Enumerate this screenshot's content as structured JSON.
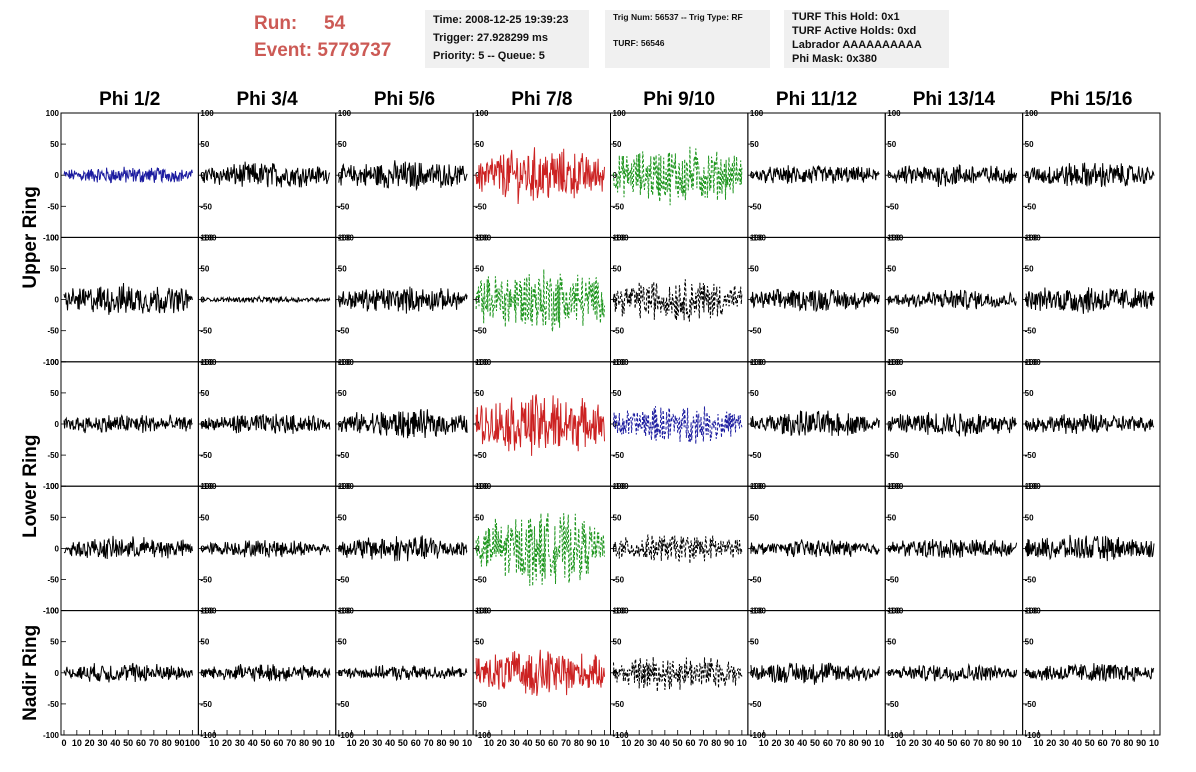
{
  "header": {
    "run_label": "Run:",
    "run_value": "54",
    "event_label": "Event:",
    "event_value": "5779737",
    "time": "Time: 2008-12-25 19:39:23",
    "trigger": "Trigger: 27.928299 ms",
    "priority": "Priority: 5 -- Queue: 5",
    "trig_num": "Trig Num: 56537 -- Trig Type: RF",
    "turf": "TURF: 56546",
    "turf_hold": "TURF This Hold: 0x1",
    "turf_active": "TURF Active Holds: 0xd",
    "labrador": "Labrador AAAAAAAAAA",
    "phi_mask": "Phi Mask: 0x380"
  },
  "chart_data": {
    "type": "line",
    "columns": [
      "Phi 1/2",
      "Phi 3/4",
      "Phi 5/6",
      "Phi 7/8",
      "Phi 9/10",
      "Phi 11/12",
      "Phi 13/14",
      "Phi 15/16"
    ],
    "ring_labels": [
      "Upper Ring",
      "Lower Ring",
      "Nadir Ring"
    ],
    "rows_per_ring": [
      2,
      2,
      1
    ],
    "xlim": [
      0,
      100
    ],
    "ylim": [
      -100,
      100
    ],
    "x_ticks": [
      0,
      10,
      20,
      30,
      40,
      50,
      60,
      70,
      80,
      90,
      100
    ],
    "x_tick_labels_first": [
      "0",
      "10",
      "20",
      "30",
      "40",
      "50",
      "60",
      "70",
      "80",
      "90",
      "100"
    ],
    "x_tick_labels_other": [
      "",
      "10",
      "20",
      "30",
      "40",
      "50",
      "60",
      "70",
      "80",
      "90",
      "10"
    ],
    "y_ticks": [
      -100,
      -50,
      0,
      50,
      100
    ],
    "y_tick_labels": [
      "-100",
      "-50",
      "0",
      "50",
      "100"
    ],
    "trace_colors": {
      "black": "#000000",
      "blue": "#1c1ca0",
      "red": "#cc2222",
      "green": "#1e961e"
    },
    "panels": [
      [
        "blue",
        "black",
        "black",
        "red",
        "green",
        "black",
        "black",
        "black"
      ],
      [
        "black",
        "black",
        "black",
        "green",
        "black",
        "black",
        "black",
        "black"
      ],
      [
        "black",
        "black",
        "black",
        "red",
        "blue",
        "black",
        "black",
        "black"
      ],
      [
        "black",
        "black",
        "black",
        "green",
        "black",
        "black",
        "black",
        "black"
      ],
      [
        "black",
        "black",
        "black",
        "red",
        "black",
        "black",
        "black",
        "black"
      ]
    ],
    "dashed": [
      [
        false,
        false,
        false,
        false,
        true,
        false,
        false,
        false
      ],
      [
        false,
        false,
        false,
        true,
        true,
        false,
        false,
        false
      ],
      [
        false,
        false,
        false,
        false,
        true,
        false,
        false,
        false
      ],
      [
        false,
        false,
        false,
        true,
        true,
        false,
        false,
        false
      ],
      [
        false,
        false,
        false,
        false,
        true,
        false,
        false,
        false
      ]
    ],
    "amplitude": [
      [
        12,
        18,
        20,
        38,
        40,
        14,
        16,
        18
      ],
      [
        22,
        4,
        18,
        45,
        30,
        16,
        14,
        20
      ],
      [
        14,
        14,
        20,
        42,
        26,
        18,
        18,
        14
      ],
      [
        16,
        12,
        18,
        50,
        20,
        12,
        14,
        18
      ],
      [
        14,
        12,
        10,
        32,
        25,
        16,
        12,
        14
      ]
    ]
  }
}
